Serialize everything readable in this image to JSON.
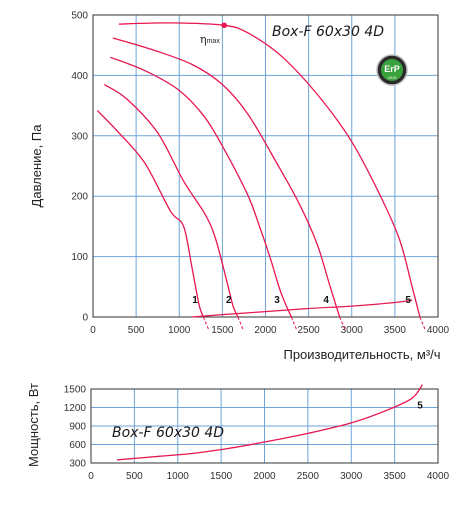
{
  "colors": {
    "curve": "#e8174f",
    "grid": "#6fa3d6",
    "frame": "#333333",
    "erp_green": "#3aa23c",
    "erp_dark": "#222222"
  },
  "chart_data": [
    {
      "type": "line",
      "title": "Box-F 60x30 4D",
      "xlabel": "Производительность, м³/ч",
      "ylabel": "Давление, Па",
      "xlim": [
        0,
        4000
      ],
      "ylim": [
        0,
        500
      ],
      "x_ticks": [
        "0",
        "500",
        "1000",
        "1500",
        "2000",
        "2500",
        "3000",
        "3500",
        "4000"
      ],
      "y_ticks": [
        "0",
        "100",
        "200",
        "300",
        "400",
        "500"
      ],
      "grid": true,
      "annotation": {
        "text": "η",
        "subscript": "max",
        "point": [
          1520,
          483
        ]
      },
      "logo": {
        "type": "badge",
        "text": "ErP",
        "subtext": "2015"
      },
      "series": [
        {
          "name": "1",
          "points": [
            [
              50,
              342
            ],
            [
              300,
              305
            ],
            [
              600,
              255
            ],
            [
              900,
              175
            ],
            [
              1050,
              150
            ],
            [
              1150,
              80
            ],
            [
              1230,
              20
            ],
            [
              1280,
              0
            ]
          ]
        },
        {
          "name": "2",
          "points": [
            [
              130,
              385
            ],
            [
              400,
              360
            ],
            [
              750,
              305
            ],
            [
              1050,
              225
            ],
            [
              1300,
              170
            ],
            [
              1420,
              130
            ],
            [
              1550,
              60
            ],
            [
              1620,
              20
            ],
            [
              1680,
              0
            ]
          ]
        },
        {
          "name": "3",
          "points": [
            [
              200,
              430
            ],
            [
              600,
              408
            ],
            [
              1000,
              375
            ],
            [
              1300,
              330
            ],
            [
              1550,
              270
            ],
            [
              1800,
              200
            ],
            [
              1930,
              150
            ],
            [
              2050,
              100
            ],
            [
              2180,
              40
            ],
            [
              2300,
              0
            ]
          ]
        },
        {
          "name": "4",
          "points": [
            [
              230,
              462
            ],
            [
              700,
              442
            ],
            [
              1150,
              418
            ],
            [
              1500,
              385
            ],
            [
              1800,
              335
            ],
            [
              2150,
              250
            ],
            [
              2400,
              185
            ],
            [
              2600,
              120
            ],
            [
              2750,
              50
            ],
            [
              2860,
              0
            ]
          ]
        },
        {
          "name": "5",
          "points": [
            [
              300,
              485
            ],
            [
              900,
              487
            ],
            [
              1520,
              483
            ],
            [
              1800,
              470
            ],
            [
              2200,
              430
            ],
            [
              2650,
              360
            ],
            [
              3000,
              290
            ],
            [
              3300,
              210
            ],
            [
              3550,
              130
            ],
            [
              3700,
              50
            ],
            [
              3790,
              0
            ]
          ]
        },
        {
          "name": "system",
          "points": [
            [
              1150,
              0
            ],
            [
              1500,
              4
            ],
            [
              2000,
              9
            ],
            [
              2500,
              14
            ],
            [
              3000,
              18
            ],
            [
              3500,
              24
            ],
            [
              3700,
              28
            ]
          ]
        }
      ]
    },
    {
      "type": "line",
      "title": "Box-F 60x30 4D",
      "xlabel": "",
      "ylabel": "Мощность, Вт",
      "xlim": [
        0,
        4000
      ],
      "ylim": [
        300,
        1500
      ],
      "x_ticks": [
        "0",
        "500",
        "1000",
        "1500",
        "2000",
        "2500",
        "3000",
        "3500",
        "4000"
      ],
      "y_ticks": [
        "300",
        "600",
        "900",
        "1200",
        "1500"
      ],
      "grid": true,
      "series": [
        {
          "name": "5",
          "points": [
            [
              300,
              350
            ],
            [
              800,
              410
            ],
            [
              1200,
              460
            ],
            [
              1600,
              540
            ],
            [
              2000,
              640
            ],
            [
              2500,
              780
            ],
            [
              3000,
              950
            ],
            [
              3400,
              1150
            ],
            [
              3700,
              1350
            ],
            [
              3820,
              1570
            ]
          ]
        }
      ]
    }
  ]
}
